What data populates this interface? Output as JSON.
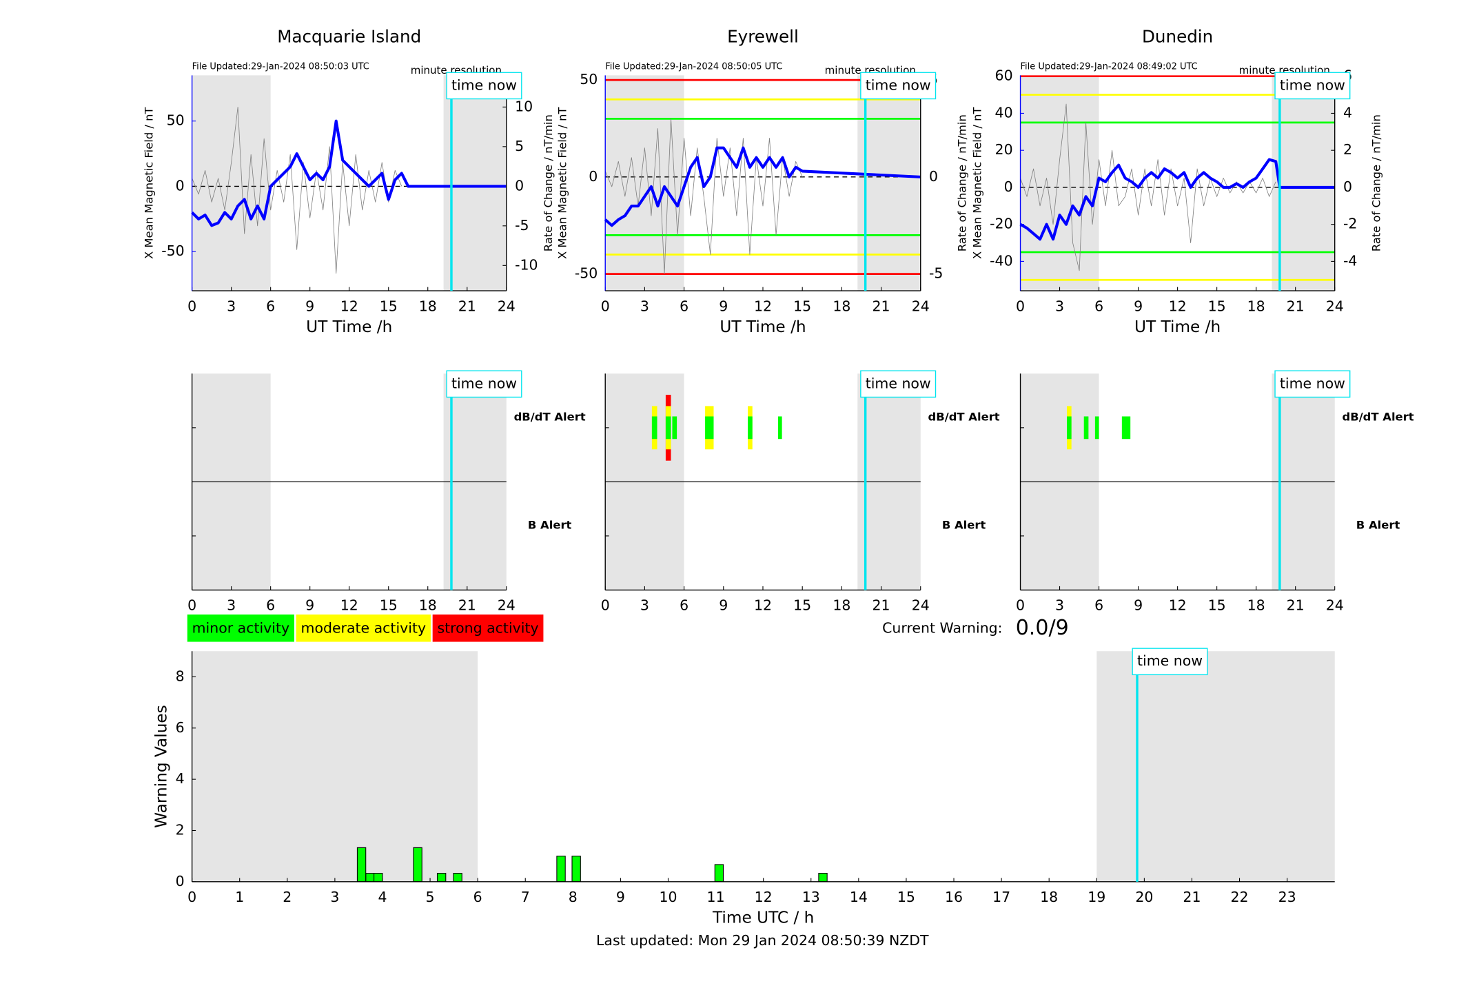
{
  "chart_data": [
    {
      "type": "line",
      "title": "Macquarie Island",
      "file_updated": "File Updated:29-Jan-2024 08:50:03 UTC",
      "resolution": "minute resolution",
      "xlabel": "UT Time /h",
      "ylabel": "X Mean Magnetic Field / nT",
      "y2label": "Rate of Change / nT/min",
      "xlim": [
        0,
        24
      ],
      "xticks": [
        0,
        3,
        6,
        9,
        12,
        15,
        18,
        21,
        24
      ],
      "ylim": [
        -80,
        85
      ],
      "yticks": [
        -50,
        0,
        50
      ],
      "y2lim": [
        -13.2,
        14
      ],
      "y2ticks": [
        -10,
        -5,
        0,
        5,
        10
      ],
      "shaded": [
        [
          0,
          6
        ],
        [
          19.2,
          24
        ]
      ],
      "now": 19.8,
      "now_label": "time now",
      "thresholds": [],
      "x": [
        0,
        0.5,
        1,
        1.5,
        2,
        2.5,
        3,
        3.5,
        4,
        4.5,
        5,
        5.5,
        6,
        6.5,
        7,
        7.5,
        8,
        8.5,
        9,
        9.5,
        10,
        10.5,
        11,
        11.5,
        12,
        12.5,
        13,
        13.5,
        14,
        14.5,
        15,
        15.5,
        16,
        16.5,
        24
      ],
      "series": [
        {
          "color": "#0000ff",
          "values": [
            -20,
            -25,
            -22,
            -30,
            -28,
            -20,
            -25,
            -15,
            -10,
            -25,
            -15,
            -25,
            0,
            5,
            10,
            15,
            25,
            15,
            5,
            10,
            5,
            15,
            50,
            20,
            15,
            10,
            5,
            0,
            5,
            10,
            -10,
            5,
            10,
            0,
            0
          ]
        },
        {
          "color": "#808080",
          "axis": "y2",
          "values": [
            1,
            -1,
            2,
            -2,
            1,
            -3,
            3,
            10,
            -6,
            4,
            -5,
            6,
            -3,
            2,
            -2,
            4,
            -8,
            3,
            -4,
            2,
            -3,
            5,
            -11,
            3,
            -5,
            4,
            -3,
            2,
            -2,
            3,
            -2,
            2,
            0,
            null,
            null
          ]
        }
      ]
    },
    {
      "type": "line",
      "title": "Eyrewell",
      "file_updated": "File Updated:29-Jan-2024 08:50:05 UTC",
      "resolution": "minute resolution",
      "xlabel": "UT Time /h",
      "ylabel": "X Mean Magnetic Field / nT",
      "y2label": "Rate of Change / nT/min",
      "xlim": [
        0,
        24
      ],
      "xticks": [
        0,
        3,
        6,
        9,
        12,
        15,
        18,
        21,
        24
      ],
      "ylim": [
        -58.7,
        52.4
      ],
      "yticks": [
        -50,
        0,
        50
      ],
      "y2lim": [
        -5.87,
        5.24
      ],
      "y2ticks": [
        -5,
        0,
        5
      ],
      "shaded": [
        [
          0,
          6
        ],
        [
          19.2,
          24
        ]
      ],
      "now": 19.8,
      "now_label": "time now",
      "thresholds": [
        {
          "value": 50,
          "color": "#ff0000"
        },
        {
          "value": 40,
          "color": "#ffff00"
        },
        {
          "value": 30,
          "color": "#00ff00"
        },
        {
          "value": -30,
          "color": "#00ff00"
        },
        {
          "value": -40,
          "color": "#ffff00"
        },
        {
          "value": -50,
          "color": "#ff0000"
        }
      ],
      "x": [
        0,
        0.5,
        1,
        1.5,
        2,
        2.5,
        3,
        3.5,
        4,
        4.5,
        5,
        5.5,
        6,
        6.5,
        7,
        7.5,
        8,
        8.5,
        9,
        9.5,
        10,
        10.5,
        11,
        11.5,
        12,
        12.5,
        13,
        13.5,
        14,
        14.5,
        15,
        24
      ],
      "series": [
        {
          "color": "#0000ff",
          "values": [
            -22,
            -25,
            -22,
            -20,
            -15,
            -15,
            -10,
            -5,
            -15,
            -5,
            -10,
            -15,
            -5,
            5,
            10,
            -5,
            0,
            15,
            15,
            10,
            5,
            15,
            5,
            10,
            5,
            10,
            5,
            10,
            0,
            5,
            3,
            0
          ]
        },
        {
          "color": "#808080",
          "axis": "y2",
          "values": [
            0.3,
            -0.5,
            0.8,
            -1,
            1,
            -1.5,
            1.5,
            -2,
            2.5,
            -5,
            3,
            -3,
            2,
            -2,
            1.5,
            -1,
            -4,
            2,
            -1,
            1.5,
            -2,
            2,
            -4,
            1,
            -1.5,
            2,
            -3,
            1,
            -1,
            0.8,
            0,
            null
          ]
        }
      ]
    },
    {
      "type": "line",
      "title": "Dunedin",
      "file_updated": "File Updated:29-Jan-2024 08:49:02 UTC",
      "resolution": "minute resolution",
      "xlabel": "UT Time /h",
      "ylabel": "X Mean Magnetic Field / nT",
      "y2label": "Rate of Change / nT/min",
      "xlim": [
        0,
        24
      ],
      "xticks": [
        0,
        3,
        6,
        9,
        12,
        15,
        18,
        21,
        24
      ],
      "ylim": [
        -55.9,
        60.5
      ],
      "yticks": [
        -40,
        -20,
        0,
        20,
        40,
        60
      ],
      "y2lim": [
        -5.59,
        6.05
      ],
      "y2ticks": [
        -4,
        -2,
        0,
        2,
        4,
        6
      ],
      "shaded": [
        [
          0,
          6
        ],
        [
          19.2,
          24
        ]
      ],
      "now": 19.8,
      "now_label": "time now",
      "thresholds": [
        {
          "value": 60,
          "color": "#ff0000"
        },
        {
          "value": 50,
          "color": "#ffff00"
        },
        {
          "value": 35,
          "color": "#00ff00"
        },
        {
          "value": -35,
          "color": "#00ff00"
        },
        {
          "value": -50,
          "color": "#ffff00"
        }
      ],
      "x": [
        0,
        0.5,
        1,
        1.5,
        2,
        2.5,
        3,
        3.5,
        4,
        4.5,
        5,
        5.5,
        6,
        6.5,
        7,
        7.5,
        8,
        8.5,
        9,
        9.5,
        10,
        10.5,
        11,
        11.5,
        12,
        12.5,
        13,
        13.5,
        14,
        14.5,
        15,
        15.5,
        16,
        16.5,
        17,
        17.5,
        18,
        18.5,
        19,
        19.5,
        19.8,
        24
      ],
      "series": [
        {
          "color": "#0000ff",
          "values": [
            -20,
            -22,
            -25,
            -28,
            -20,
            -28,
            -15,
            -20,
            -10,
            -15,
            -5,
            -10,
            5,
            3,
            8,
            12,
            5,
            3,
            0,
            5,
            8,
            5,
            10,
            8,
            5,
            8,
            0,
            5,
            8,
            5,
            3,
            0,
            0,
            2,
            0,
            3,
            5,
            10,
            15,
            14,
            0,
            0
          ]
        },
        {
          "color": "#808080",
          "axis": "y2",
          "values": [
            0.5,
            -0.5,
            1,
            -1,
            0.5,
            -2,
            1.5,
            4.5,
            -3,
            -4.5,
            3.5,
            -2,
            1.5,
            -1,
            2,
            -1,
            -0.5,
            1,
            -1.5,
            1,
            -1,
            1.5,
            -1.5,
            1,
            -1,
            0.5,
            -3,
            1,
            -1,
            0.5,
            -0.5,
            0.5,
            -0.3,
            0.3,
            -0.3,
            0.3,
            -0.3,
            0.5,
            -0.5,
            0.3,
            null,
            null
          ]
        }
      ]
    },
    {
      "type": "alert",
      "xlim": [
        0,
        24
      ],
      "xticks": [
        0,
        3,
        6,
        9,
        12,
        15,
        18,
        21,
        24
      ],
      "shaded": [
        [
          0,
          6
        ],
        [
          19.2,
          24
        ]
      ],
      "now": 19.8,
      "now_label": "time now",
      "rows": [
        {
          "label": "dB/dT Alert",
          "color": "#000000",
          "events": []
        },
        {
          "label": "B Alert",
          "color": "#0000ff",
          "events": []
        }
      ]
    },
    {
      "type": "alert",
      "xlim": [
        0,
        24
      ],
      "xticks": [
        0,
        3,
        6,
        9,
        12,
        15,
        18,
        21,
        24
      ],
      "shaded": [
        [
          0,
          6
        ],
        [
          19.2,
          24
        ]
      ],
      "now": 19.8,
      "now_label": "time now",
      "rows": [
        {
          "label": "dB/dT Alert",
          "color": "#000000",
          "events": [
            {
              "start": 3.55,
              "end": 3.95,
              "level": 2
            },
            {
              "start": 4.6,
              "end": 5.0,
              "level": 3
            },
            {
              "start": 5.1,
              "end": 5.45,
              "level": 1
            },
            {
              "start": 7.6,
              "end": 8.25,
              "level": 2
            },
            {
              "start": 10.85,
              "end": 11.2,
              "level": 2
            },
            {
              "start": 13.15,
              "end": 13.45,
              "level": 1
            }
          ]
        },
        {
          "label": "B Alert",
          "color": "#0000ff",
          "events": []
        }
      ]
    },
    {
      "type": "alert",
      "xlim": [
        0,
        24
      ],
      "xticks": [
        0,
        3,
        6,
        9,
        12,
        15,
        18,
        21,
        24
      ],
      "shaded": [
        [
          0,
          6
        ],
        [
          19.2,
          24
        ]
      ],
      "now": 19.8,
      "now_label": "time now",
      "rows": [
        {
          "label": "dB/dT Alert",
          "color": "#000000",
          "events": [
            {
              "start": 3.55,
              "end": 3.9,
              "level": 2
            },
            {
              "start": 4.85,
              "end": 5.2,
              "level": 1
            },
            {
              "start": 5.7,
              "end": 6.0,
              "level": 1
            },
            {
              "start": 7.75,
              "end": 8.4,
              "level": 1
            }
          ]
        },
        {
          "label": "B Alert",
          "color": "#0000ff",
          "events": []
        }
      ]
    },
    {
      "type": "bar",
      "xlabel": "Time UTC / h",
      "ylabel": "Warning Values",
      "color": "#00ff00",
      "xlim": [
        0,
        24
      ],
      "xticks": [
        0,
        1,
        2,
        3,
        4,
        5,
        6,
        7,
        8,
        9,
        10,
        11,
        12,
        13,
        14,
        15,
        16,
        17,
        18,
        19,
        20,
        21,
        22,
        23
      ],
      "ylim": [
        0,
        9
      ],
      "yticks": [
        0,
        2,
        4,
        6,
        8
      ],
      "shaded": [
        [
          0,
          6
        ],
        [
          19,
          24
        ]
      ],
      "now": 19.85,
      "now_label": "time now",
      "x": [
        3.56,
        3.74,
        3.91,
        4.74,
        5.24,
        5.58,
        7.75,
        8.07,
        11.07,
        13.25
      ],
      "values": [
        1.33,
        0.33,
        0.33,
        1.33,
        0.33,
        0.33,
        1,
        1,
        0.67,
        0.33
      ],
      "legend": [
        {
          "name": "minor activity",
          "color": "#00ff00"
        },
        {
          "name": "moderate activity",
          "color": "#ffff00"
        },
        {
          "name": "strong activity",
          "color": "#ff0000"
        }
      ],
      "current_warning_label": "Current Warning:",
      "current_warning": "0.0/9",
      "footnote": "Last updated: Mon 29 Jan 2024 08:50:39 NZDT"
    }
  ]
}
